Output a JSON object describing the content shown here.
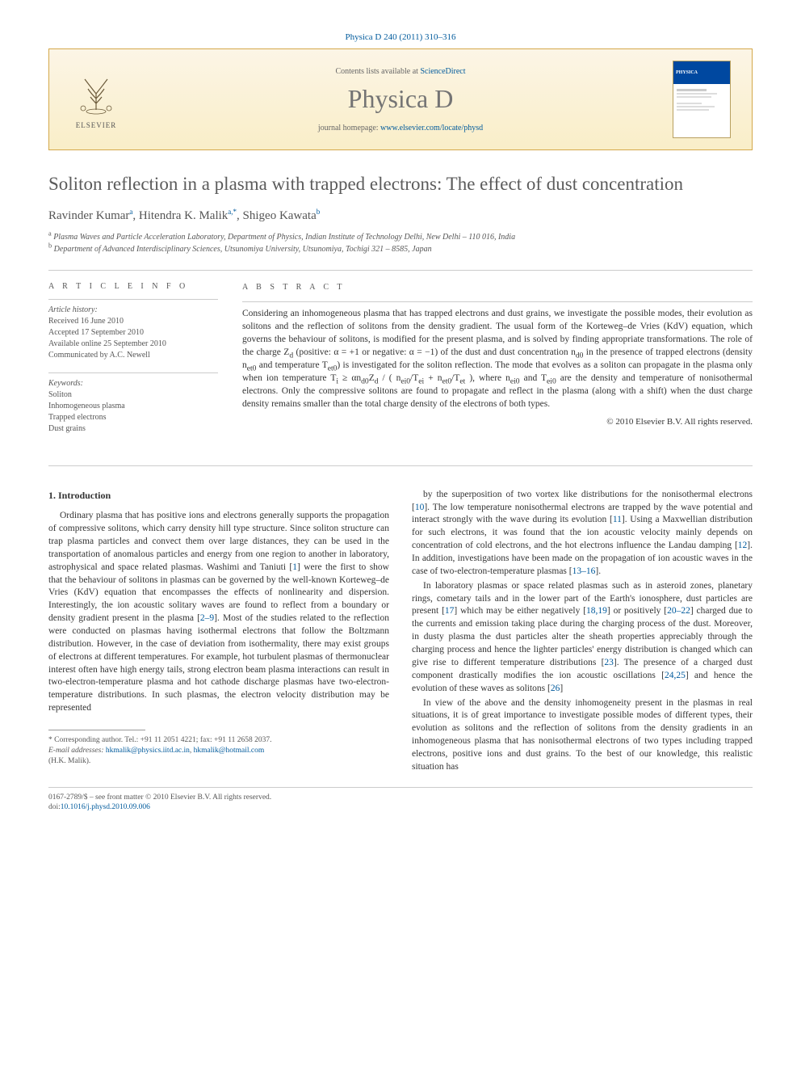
{
  "journal_ref": "Physica D 240 (2011) 310–316",
  "banner": {
    "publisher": "ELSEVIER",
    "contents_prefix": "Contents lists available at ",
    "contents_link": "ScienceDirect",
    "journal_name": "Physica D",
    "homepage_prefix": "journal homepage: ",
    "homepage_url": "www.elsevier.com/locate/physd",
    "cover_label": "PHYSICA",
    "logo_color": "#e67817",
    "banner_border": "#d4a84a"
  },
  "title": "Soliton reflection in a plasma with trapped electrons: The effect of dust concentration",
  "authors_html": "Ravinder Kumar<sup class='author-link'>a</sup>, Hitendra K. Malik<sup class='author-link'>a,*</sup>, Shigeo Kawata<sup class='author-link'>b</sup>",
  "affiliations": [
    "a Plasma Waves and Particle Acceleration Laboratory, Department of Physics, Indian Institute of Technology Delhi, New Delhi – 110 016, India",
    "b Department of Advanced Interdisciplinary Sciences, Utsunomiya University, Utsunomiya, Tochigi 321 – 8585, Japan"
  ],
  "info": {
    "label": "A R T I C L E   I N F O",
    "history_label": "Article history:",
    "history": [
      "Received 16 June 2010",
      "Accepted 17 September 2010",
      "Available online 25 September 2010",
      "Communicated by A.C. Newell"
    ],
    "keywords_label": "Keywords:",
    "keywords": [
      "Soliton",
      "Inhomogeneous plasma",
      "Trapped electrons",
      "Dust grains"
    ]
  },
  "abstract": {
    "label": "A B S T R A C T",
    "text": "Considering an inhomogeneous plasma that has trapped electrons and dust grains, we investigate the possible modes, their evolution as solitons and the reflection of solitons from the density gradient. The usual form of the Korteweg–de Vries (KdV) equation, which governs the behaviour of solitons, is modified for the present plasma, and is solved by finding appropriate transformations. The role of the charge Z_d (positive: α = +1 or negative: α = −1) of the dust and dust concentration n_{d0} in the presence of trapped electrons (density n_{et0} and temperature T_{et0}) is investigated for the soliton reflection. The mode that evolves as a soliton can propagate in the plasma only when ion temperature T_i ≥ αn_{d0}Z_d / ( n_{ei0}/T_{ei} + n_{et0}/T_{et} ), where n_{ei0} and T_{ei0} are the density and temperature of nonisothermal electrons. Only the compressive solitons are found to propagate and reflect in the plasma (along with a shift) when the dust charge density remains smaller than the total charge density of the electrons of both types.",
    "copyright": "© 2010 Elsevier B.V. All rights reserved."
  },
  "section_heading": "1. Introduction",
  "body": {
    "p1": "Ordinary plasma that has positive ions and electrons generally supports the propagation of compressive solitons, which carry density hill type structure. Since soliton structure can trap plasma particles and convect them over large distances, they can be used in the transportation of anomalous particles and energy from one region to another in laboratory, astrophysical and space related plasmas. Washimi and Taniuti [1] were the first to show that the behaviour of solitons in plasmas can be governed by the well-known Korteweg–de Vries (KdV) equation that encompasses the effects of nonlinearity and dispersion. Interestingly, the ion acoustic solitary waves are found to reflect from a boundary or density gradient present in the plasma [2–9]. Most of the studies related to the reflection were conducted on plasmas having isothermal electrons that follow the Boltzmann distribution. However, in the case of deviation from isothermality, there may exist groups of electrons at different temperatures. For example, hot turbulent plasmas of thermonuclear interest often have high energy tails, strong electron beam plasma interactions can result in two-electron-temperature plasma and hot cathode discharge plasmas have two-electron-temperature distributions. In such plasmas, the electron velocity distribution may be represented",
    "p2": "by the superposition of two vortex like distributions for the nonisothermal electrons [10]. The low temperature nonisothermal electrons are trapped by the wave potential and interact strongly with the wave during its evolution [11]. Using a Maxwellian distribution for such electrons, it was found that the ion acoustic velocity mainly depends on concentration of cold electrons, and the hot electrons influence the Landau damping [12]. In addition, investigations have been made on the propagation of ion acoustic waves in the case of two-electron-temperature plasmas [13–16].",
    "p3": "In laboratory plasmas or space related plasmas such as in asteroid zones, planetary rings, cometary tails and in the lower part of the Earth's ionosphere, dust particles are present [17] which may be either negatively [18,19] or positively [20–22] charged due to the currents and emission taking place during the charging process of the dust. Moreover, in dusty plasma the dust particles alter the sheath properties appreciably through the charging process and hence the lighter particles' energy distribution is changed which can give rise to different temperature distributions [23]. The presence of a charged dust component drastically modifies the ion acoustic oscillations [24,25] and hence the evolution of these waves as solitons [26]",
    "p4": "In view of the above and the density inhomogeneity present in the plasmas in real situations, it is of great importance to investigate possible modes of different types, their evolution as solitons and the reflection of solitons from the density gradients in an inhomogeneous plasma that has nonisothermal electrons of two types including trapped electrons, positive ions and dust grains. To the best of our knowledge, this realistic situation has"
  },
  "footnote": {
    "corr": "* Corresponding author. Tel.: +91 11 2051 4221; fax: +91 11 2658 2037.",
    "email_label": "E-mail addresses:",
    "email1": "hkmalik@physics.iitd.ac.in",
    "email2": "hkmalik@hotmail.com",
    "email_suffix": "(H.K. Malik)."
  },
  "doi": {
    "line1": "0167-2789/$ – see front matter © 2010 Elsevier B.V. All rights reserved.",
    "line2_prefix": "doi:",
    "line2_link": "10.1016/j.physd.2010.09.006"
  },
  "colors": {
    "link": "#005a9c",
    "title_gray": "#5b5b5b",
    "text": "#333333",
    "muted": "#555555"
  }
}
